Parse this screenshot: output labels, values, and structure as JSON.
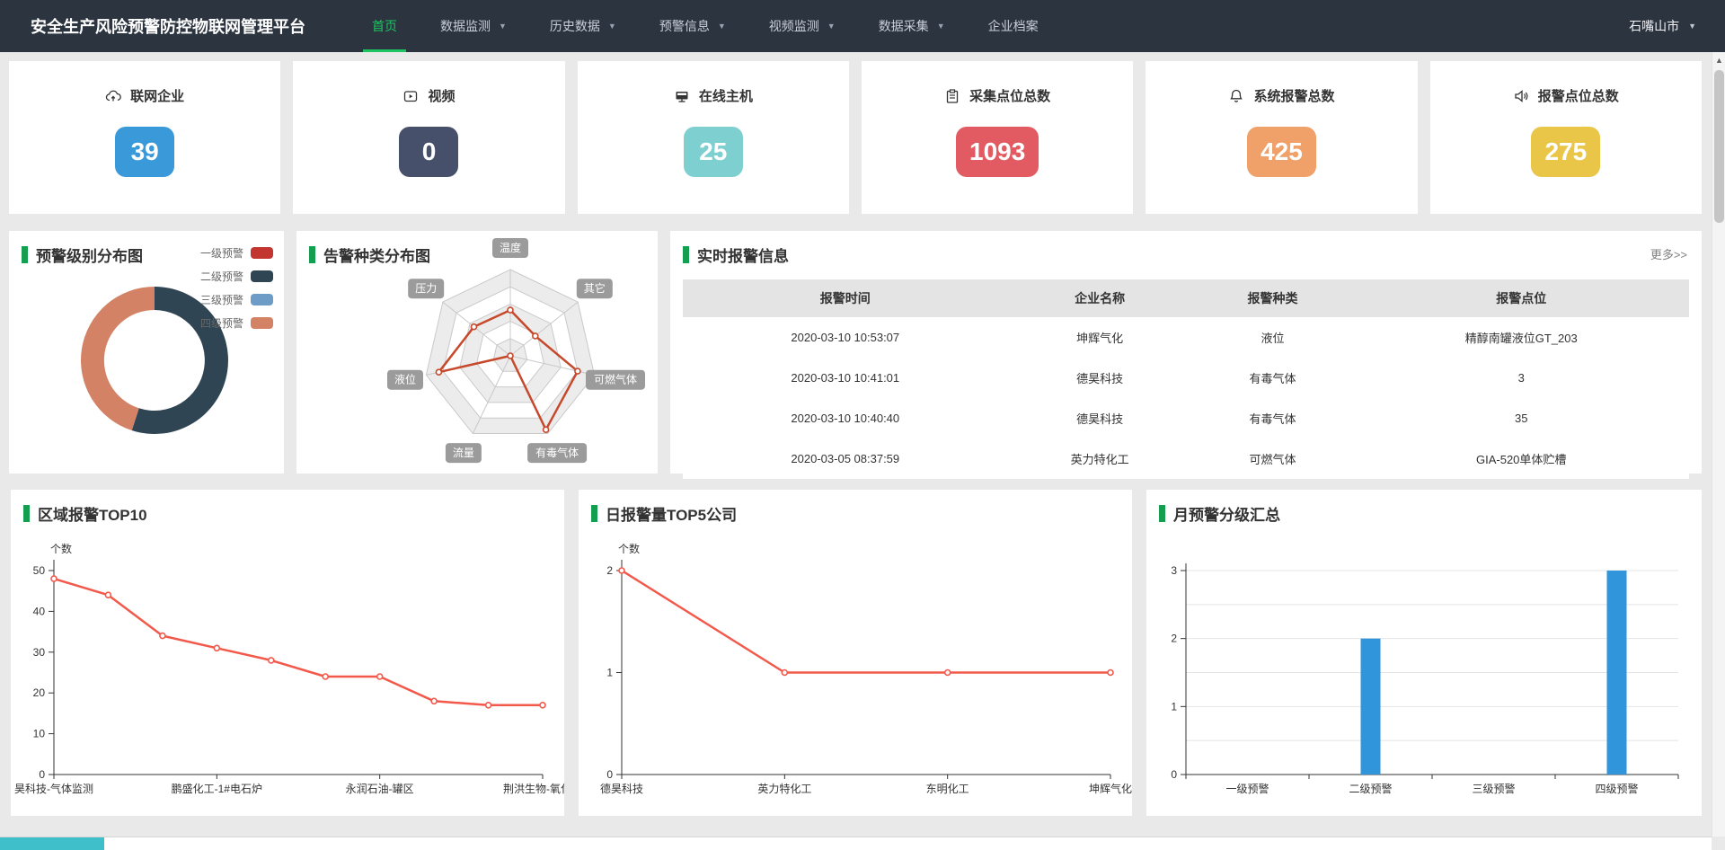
{
  "nav": {
    "title": "安全生产风险预警防控物联网管理平台",
    "items": [
      {
        "label": "首页",
        "active": true,
        "caret": false
      },
      {
        "label": "数据监测",
        "active": false,
        "caret": true
      },
      {
        "label": "历史数据",
        "active": false,
        "caret": true
      },
      {
        "label": "预警信息",
        "active": false,
        "caret": true
      },
      {
        "label": "视频监测",
        "active": false,
        "caret": true
      },
      {
        "label": "数据采集",
        "active": false,
        "caret": true
      },
      {
        "label": "企业档案",
        "active": false,
        "caret": false
      }
    ],
    "region": "石嘴山市",
    "accent_green": "#1dc462"
  },
  "stats": {
    "items": [
      {
        "label": "联网企业",
        "value": "39",
        "color": "#3a99d9",
        "icon": "cloud-icon"
      },
      {
        "label": "视频",
        "value": "0",
        "color": "#47506b",
        "icon": "video-icon"
      },
      {
        "label": "在线主机",
        "value": "25",
        "color": "#7ed0d0",
        "icon": "monitor-icon"
      },
      {
        "label": "采集点位总数",
        "value": "1093",
        "color": "#e25b62",
        "icon": "clipboard-icon"
      },
      {
        "label": "系统报警总数",
        "value": "425",
        "color": "#f0a169",
        "icon": "bell-icon"
      },
      {
        "label": "报警点位总数",
        "value": "275",
        "color": "#e9c648",
        "icon": "speaker-icon"
      }
    ]
  },
  "alarm_table": {
    "title": "实时报警信息",
    "more_label": "更多>>",
    "headers": [
      "报警时间",
      "企业名称",
      "报警种类",
      "报警点位"
    ],
    "rows": [
      [
        "2020-03-10 10:53:07",
        "坤辉气化",
        "液位",
        "精醇南罐液位GT_203"
      ],
      [
        "2020-03-10 10:41:01",
        "德昊科技",
        "有毒气体",
        "3"
      ],
      [
        "2020-03-10 10:40:40",
        "德昊科技",
        "有毒气体",
        "35"
      ],
      [
        "2020-03-05 08:37:59",
        "英力特化工",
        "可燃气体",
        "GIA-520单体贮槽"
      ]
    ]
  },
  "chrome": {
    "scroll_up_glyph": "▲"
  },
  "chart_data": [
    {
      "id": "warning-level-donut",
      "type": "pie",
      "title": "预警级别分布图",
      "subtype": "donut",
      "legend_position": "top-right",
      "slices": [
        {
          "name": "一级预警",
          "color": "#c23531",
          "share_pct": 0
        },
        {
          "name": "二级预警",
          "color": "#2f4554",
          "share_pct": 55
        },
        {
          "name": "三级预警",
          "color": "#6d9cc6",
          "share_pct": 0
        },
        {
          "name": "四级预警",
          "color": "#d48265",
          "share_pct": 45
        }
      ]
    },
    {
      "id": "alarm-type-radar",
      "type": "radar",
      "title": "告警种类分布图",
      "indicators": [
        "温度",
        "其它",
        "可燃气体",
        "有毒气体",
        "流量",
        "液位",
        "压力"
      ],
      "values_pct_of_max": [
        53,
        37,
        80,
        95,
        0,
        85,
        54
      ],
      "max": 100,
      "levels": 5,
      "line_color": "#c6492b"
    },
    {
      "id": "region-alarm-top10",
      "type": "line",
      "title": "区域报警TOP10",
      "ylabel": "个数",
      "ylim": [
        0,
        50
      ],
      "y_ticks": [
        0,
        10,
        20,
        30,
        40,
        50
      ],
      "values": [
        48,
        44,
        34,
        31,
        28,
        24,
        24,
        18,
        17,
        17
      ],
      "x_labels_shown": [
        "昊科技-气体监测",
        "鹏盛化工-1#电石炉",
        "永润石油-罐区",
        "荆洪生物-氧化反"
      ],
      "x_label_indices": [
        0,
        3,
        6,
        9
      ],
      "color": "#f3594b",
      "grid": false
    },
    {
      "id": "daily-alarm-top5",
      "type": "line",
      "title": "日报警量TOP5公司",
      "ylabel": "个数",
      "ylim": [
        0,
        2
      ],
      "y_ticks": [
        0,
        1,
        2
      ],
      "categories": [
        "德昊科技",
        "英力特化工",
        "东明化工",
        "坤辉气化"
      ],
      "x_label_indices": [
        0,
        1,
        2,
        3
      ],
      "values": [
        2,
        1,
        1,
        1
      ],
      "color": "#f3594b",
      "grid": false
    },
    {
      "id": "monthly-warning-bar",
      "type": "bar",
      "title": "月预警分级汇总",
      "ylim": [
        0,
        3
      ],
      "y_ticks": [
        0,
        1,
        2,
        3
      ],
      "categories": [
        "一级预警",
        "二级预警",
        "三级预警",
        "四级预警"
      ],
      "values": [
        0,
        2,
        0,
        3
      ],
      "color": "#3095db",
      "grid": true
    }
  ]
}
